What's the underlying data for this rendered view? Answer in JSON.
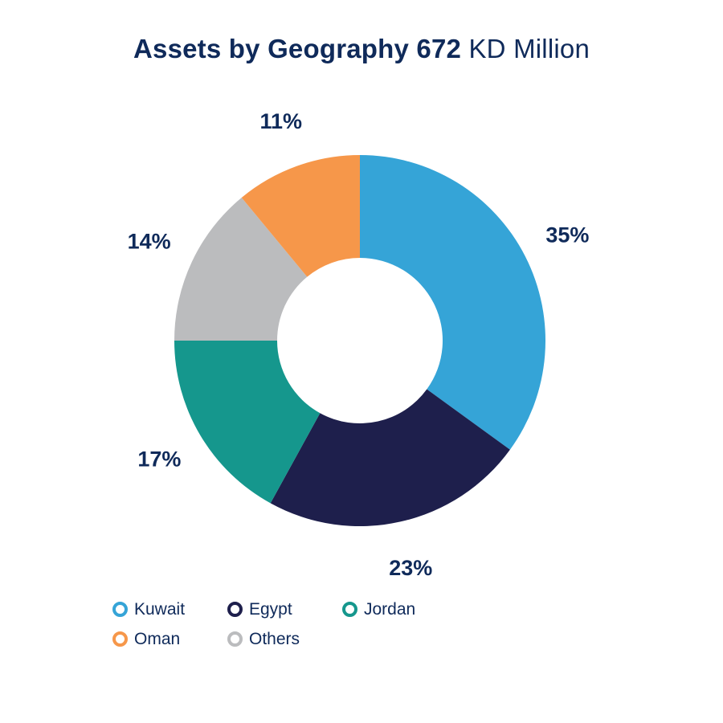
{
  "chart_data": {
    "type": "pie",
    "variant": "donut",
    "title": "Assets by Geography 672",
    "title_unit": "KD Million",
    "slices": [
      {
        "label": "Kuwait",
        "value": 35,
        "value_label": "35%",
        "color": "#35a4d7"
      },
      {
        "label": "Egypt",
        "value": 23,
        "value_label": "23%",
        "color": "#1e1f4c"
      },
      {
        "label": "Jordan",
        "value": 17,
        "value_label": "17%",
        "color": "#15978d"
      },
      {
        "label": "Others",
        "value": 14,
        "value_label": "14%",
        "color": "#bbbcbe"
      },
      {
        "label": "Oman",
        "value": 11,
        "value_label": "11%",
        "color": "#f6974a"
      }
    ],
    "legend_order": [
      "Kuwait",
      "Egypt",
      "Jordan",
      "Oman",
      "Others"
    ],
    "legend_placement": "bottom-left"
  }
}
